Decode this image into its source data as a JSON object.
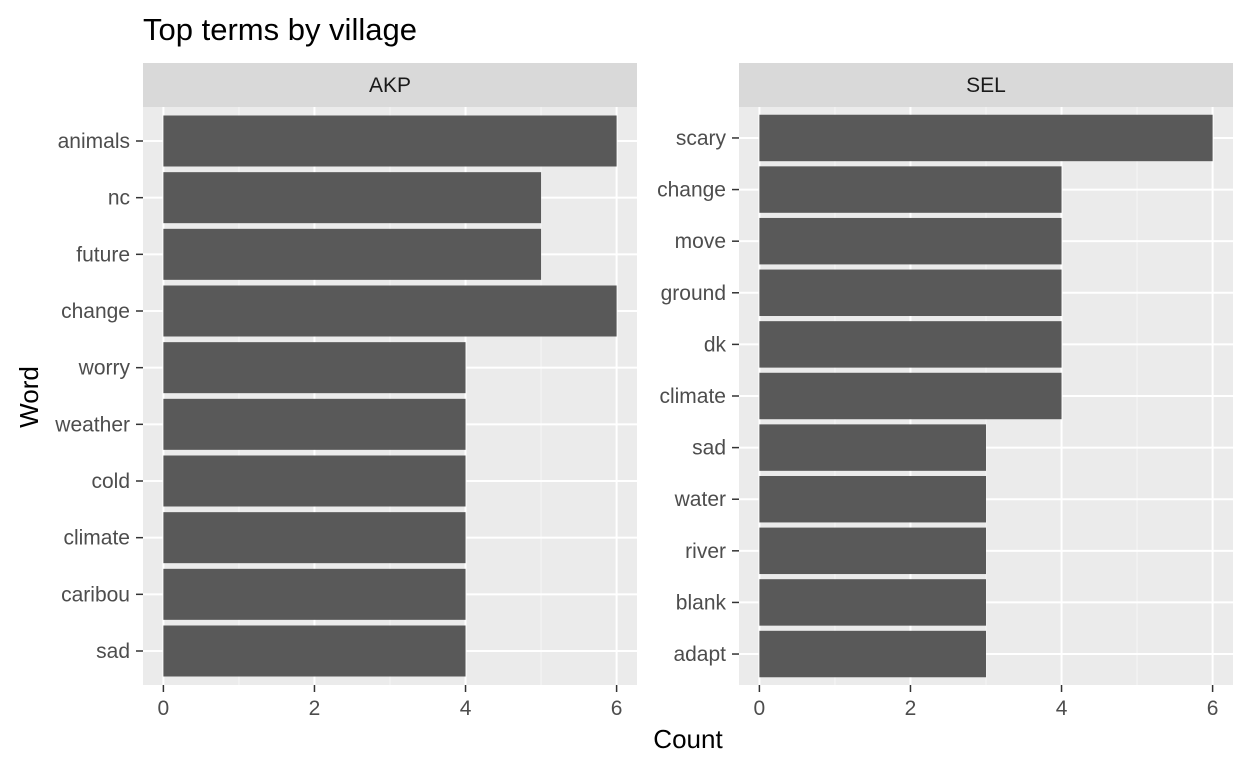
{
  "chart_data": {
    "type": "bar",
    "orientation": "horizontal",
    "title": "Top terms by village",
    "xlabel": "Count",
    "ylabel": "Word",
    "xlim": [
      0,
      6
    ],
    "x_ticks": [
      "0",
      "2",
      "4",
      "6"
    ],
    "grid": true,
    "colors": {
      "bar": "#595959",
      "panel_background": "#ebebeb",
      "strip_background": "#d9d9d9",
      "grid": "#ffffff"
    },
    "panels": [
      {
        "name": "AKP",
        "categories": [
          "animals",
          "nc",
          "future",
          "change",
          "worry",
          "weather",
          "cold",
          "climate",
          "caribou",
          "sad"
        ],
        "values": [
          6,
          5,
          5,
          6,
          4,
          4,
          4,
          4,
          4,
          4
        ]
      },
      {
        "name": "SEL",
        "categories": [
          "scary",
          "change",
          "move",
          "ground",
          "dk",
          "climate",
          "sad",
          "water",
          "river",
          "blank",
          "adapt"
        ],
        "values": [
          6,
          4,
          4,
          4,
          4,
          4,
          3,
          3,
          3,
          3,
          3
        ]
      }
    ]
  }
}
